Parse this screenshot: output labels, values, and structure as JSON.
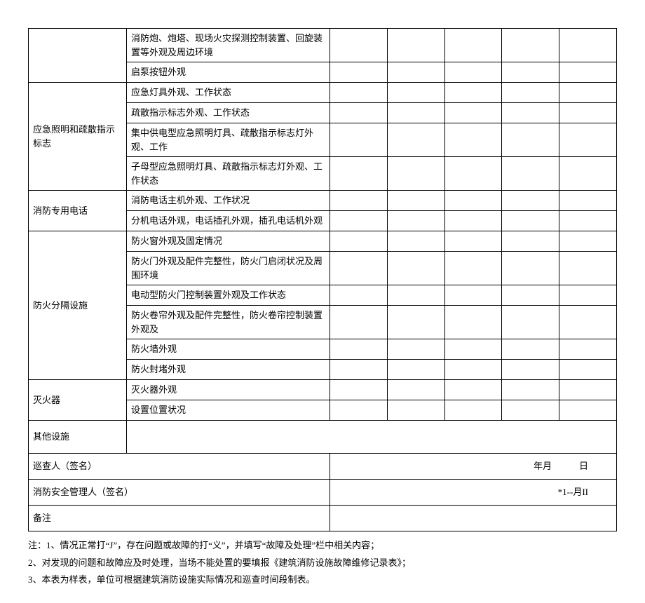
{
  "rows": [
    {
      "cat": "",
      "catRowspan": 2,
      "item": "消防炮、炮塔、现场火灾探测控制装置、回旋装置等外观及周边环境"
    },
    {
      "item": "启泵按钮外观"
    },
    {
      "cat": "应急照明和疏散指示标志",
      "catRowspan": 4,
      "item": "应急灯具外观、工作状态"
    },
    {
      "item": "疏散指示标志外观、工作状态"
    },
    {
      "item": "集中供电型应急照明灯具、疏散指示标志灯外观、工作"
    },
    {
      "item": "子母型应急照明灯具、疏散指示标志灯外观、工作状态"
    },
    {
      "cat": "消防专用电话",
      "catRowspan": 2,
      "item": "消防电话主机外观、工作状况"
    },
    {
      "item": "分机电话外观，电话插孔外观，插孔电话机外观"
    },
    {
      "cat": "防火分隔设施",
      "catRowspan": 6,
      "item": "防火窗外观及固定情况"
    },
    {
      "item": "防火门外观及配件完整性，防火门启闭状况及周围环境"
    },
    {
      "item": "电动型防火门控制装置外观及工作状态"
    },
    {
      "item": "防火卷帘外观及配件完整性，防火卷帘控制装置外观及"
    },
    {
      "item": "防火墙外观"
    },
    {
      "item": "防火封堵外观"
    },
    {
      "cat": "灭火器",
      "catRowspan": 2,
      "item": "灭火器外观"
    },
    {
      "item": "设置位置状况"
    },
    {
      "cat": "其他设施",
      "catRowspan": 1,
      "item": "",
      "mergeItem": true,
      "tallRow": true
    }
  ],
  "sigRows": [
    {
      "label": "巡查人（签名）",
      "right": "年月　　　日"
    },
    {
      "label": "消防安全管理人（签名）",
      "right": "*1--月II"
    },
    {
      "label": "备注",
      "right": ""
    }
  ],
  "notes": [
    "注：1、情况正常打“J”，存在问题或故障的打“义”，并填写“故障及处理”栏中相关内容；",
    "2、对发现的问题和故障应及时处理，当场不能处置的要填报《建筑消防设施故障维修记录表》；",
    "3、本表为样表，单位可根据建筑消防设施实际情况和巡查时间段制表。"
  ],
  "blankCols": 5
}
